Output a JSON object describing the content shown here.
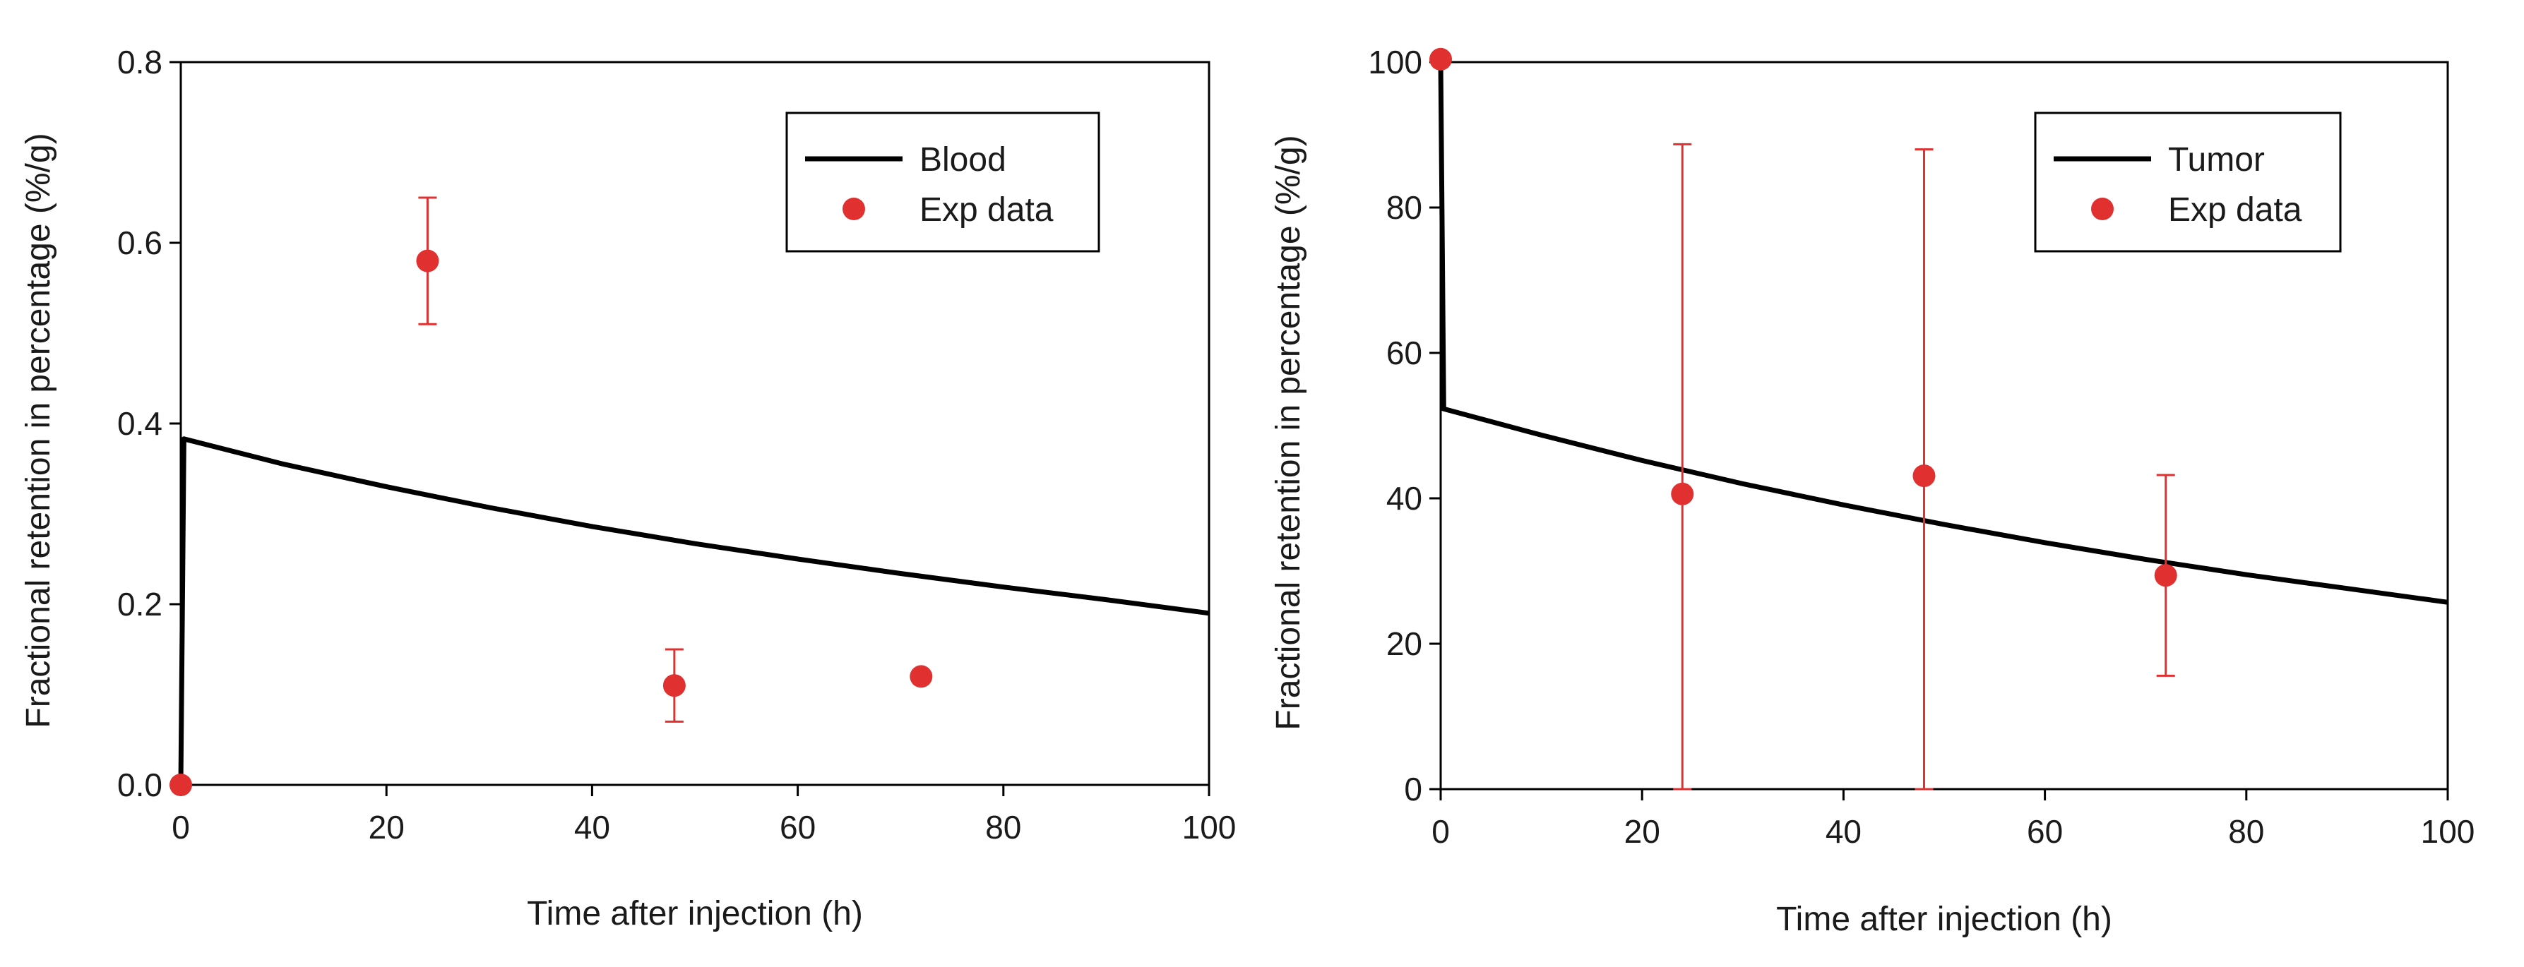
{
  "colors": {
    "model_line": "#000000",
    "exp_data": "#e03030"
  },
  "chart_data": [
    {
      "type": "line",
      "title": "",
      "xlabel": "Time after injection (h)",
      "ylabel": "Fractional retention in percentage (%/g)",
      "xlim": [
        0,
        100
      ],
      "ylim": [
        0,
        0.8
      ],
      "xticks": [
        0,
        20,
        40,
        60,
        80,
        100
      ],
      "xtick_labels": [
        "0",
        "20",
        "40",
        "60",
        "80",
        "100"
      ],
      "yticks": [
        0,
        0.2,
        0.4,
        0.6,
        0.8
      ],
      "ytick_labels": [
        "0.0",
        "0.2",
        "0.4",
        "0.6",
        "0.8"
      ],
      "legend": {
        "position": "top-right",
        "entries": [
          "Blood",
          "Exp data"
        ]
      },
      "series": [
        {
          "name": "Blood",
          "kind": "line",
          "x": [
            0,
            0.3,
            10,
            20,
            30,
            40,
            50,
            60,
            70,
            80,
            90,
            100
          ],
          "y": [
            0,
            0.383,
            0.355,
            0.33,
            0.307,
            0.286,
            0.267,
            0.25,
            0.234,
            0.219,
            0.205,
            0.19
          ]
        },
        {
          "name": "Exp data",
          "kind": "scatter",
          "x": [
            0,
            24,
            48,
            72
          ],
          "y": [
            0.0,
            0.58,
            0.11,
            0.12
          ],
          "err_low": [
            0,
            0.51,
            0.07,
            null
          ],
          "err_high": [
            0,
            0.65,
            0.15,
            null
          ]
        }
      ]
    },
    {
      "type": "line",
      "title": "",
      "xlabel": "Time after injection (h)",
      "ylabel": "Fractional retention in percentage (%/g)",
      "xlim": [
        0,
        100
      ],
      "ylim": [
        0,
        100
      ],
      "xticks": [
        0,
        20,
        40,
        60,
        80,
        100
      ],
      "xtick_labels": [
        "0",
        "20",
        "40",
        "60",
        "80",
        "100"
      ],
      "yticks": [
        0,
        20,
        40,
        60,
        80,
        100
      ],
      "ytick_labels": [
        "0",
        "20",
        "40",
        "60",
        "80",
        "100"
      ],
      "legend": {
        "position": "top-right",
        "entries": [
          "Tumor",
          "Exp data"
        ]
      },
      "series": [
        {
          "name": "Tumor",
          "kind": "line",
          "x": [
            0,
            0,
            0.3,
            10,
            20,
            30,
            40,
            50,
            60,
            70,
            80,
            90,
            100
          ],
          "y": [
            100,
            100,
            52.3,
            48.7,
            45.2,
            42.0,
            39.1,
            36.4,
            33.9,
            31.6,
            29.5,
            27.6,
            25.7
          ]
        },
        {
          "name": "Exp data",
          "kind": "scatter",
          "x": [
            0,
            24,
            48,
            72
          ],
          "y": [
            100.4,
            40.6,
            43.1,
            29.4
          ],
          "err_low": [
            null,
            0,
            0,
            15.6
          ],
          "err_high": [
            null,
            88.7,
            88.0,
            43.2
          ]
        }
      ]
    }
  ]
}
